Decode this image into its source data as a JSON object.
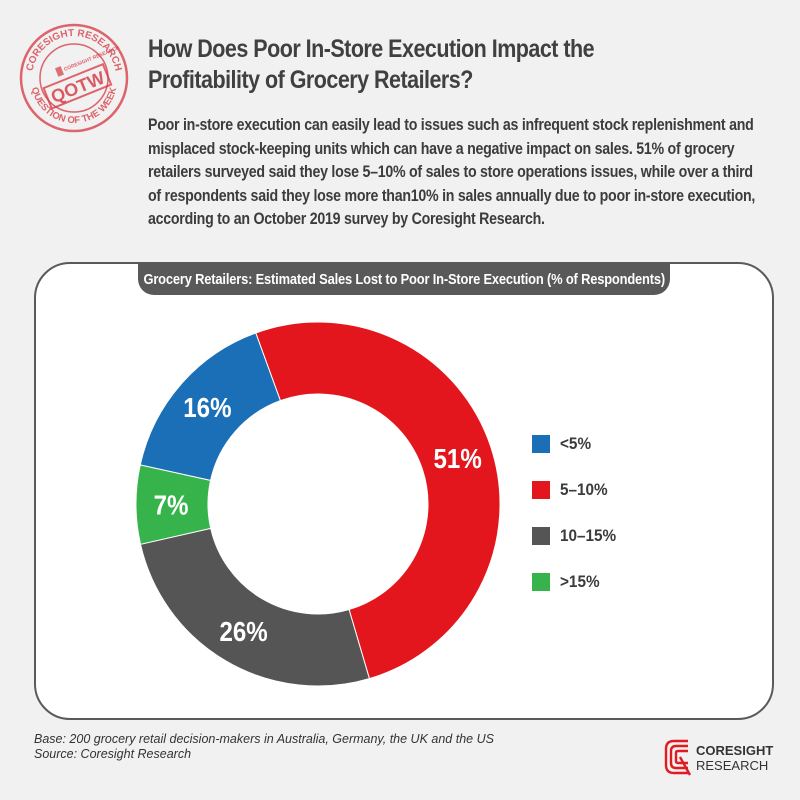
{
  "stamp": {
    "top_text": "CORESIGHT RESEARCH",
    "bottom_text": "QUESTION OF THE WEEK",
    "center_text": "QOTW",
    "small_text": "CORESIGHT RESEARCH",
    "color": "#d6343f"
  },
  "header": {
    "title_line1": "How Does Poor In-Store Execution Impact the",
    "title_line2": "Profitability of Grocery Retailers?",
    "intro": "Poor in-store execution can easily lead to issues such as infrequent stock replenishment and misplaced stock-keeping units which can have a negative impact on sales. 51% of grocery retailers surveyed said they lose 5–10% of sales to store operations issues, while over a third of respondents said they lose more than10% in sales annually due to poor in-store execution, according to an October 2019 survey by Coresight Research."
  },
  "chart_data": {
    "type": "pie",
    "title": "Grocery Retailers: Estimated Sales Lost to Poor In-Store Execution (% of Respondents)",
    "donut": true,
    "legend_position": "right",
    "slices": [
      {
        "label": "<5%",
        "value": 16,
        "display": "16%",
        "color": "#1a6fb7"
      },
      {
        "label": "5–10%",
        "value": 51,
        "display": "51%",
        "color": "#e3161e"
      },
      {
        "label": "10–15%",
        "value": 26,
        "display": "26%",
        "color": "#555555"
      },
      {
        "label": ">15%",
        "value": 7,
        "display": "7%",
        "color": "#36b34a"
      }
    ]
  },
  "footnote": {
    "base": "Base: 200 grocery retail decision-makers in Australia, Germany, the UK and the US",
    "source": "Source: Coresight Research"
  },
  "logo": {
    "line1": "CORESIGHT",
    "line2": "RESEARCH",
    "color": "#e11b22"
  }
}
